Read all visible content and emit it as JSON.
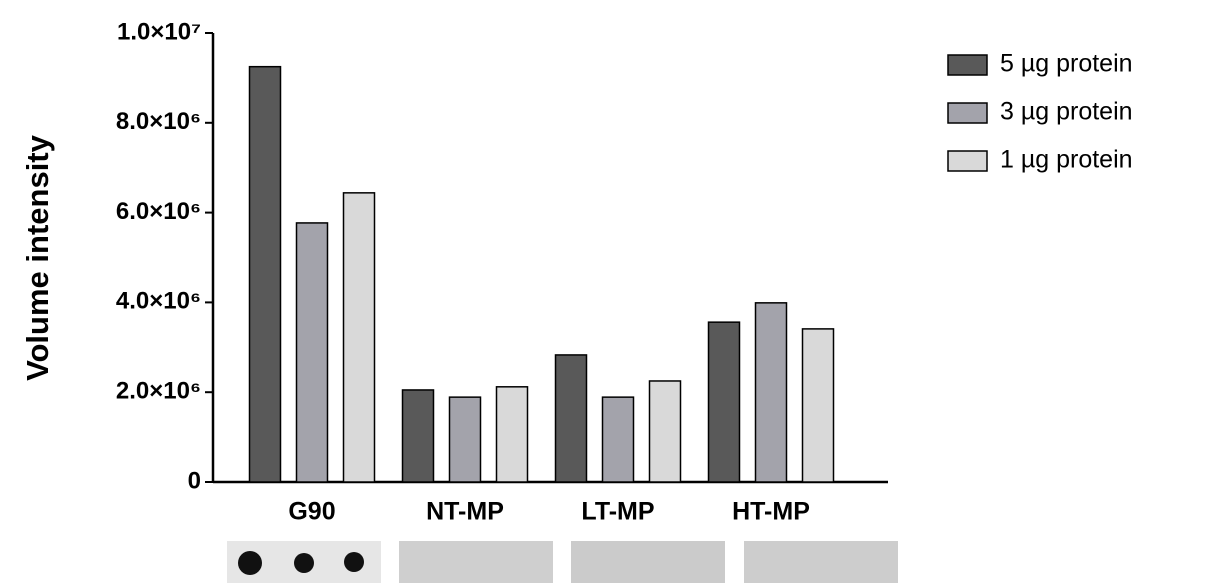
{
  "chart_data": {
    "type": "bar",
    "y_label": "Volume intensity",
    "categories": [
      "G90",
      "NT-MP",
      "LT-MP",
      "HT-MP"
    ],
    "series": [
      {
        "name": "5 µg protein",
        "color": "#595959",
        "values": [
          9250000,
          2050000,
          2830000,
          3560000
        ]
      },
      {
        "name": "3 µg protein",
        "color": "#a3a3ab",
        "values": [
          5770000,
          1890000,
          1890000,
          3990000
        ]
      },
      {
        "name": "1 µg protein",
        "color": "#d9d9d9",
        "values": [
          6440000,
          2120000,
          2250000,
          3410000
        ]
      }
    ],
    "ylim": [
      0,
      10000000
    ],
    "yticks": [
      0,
      {
        "value": 2000000,
        "label": "2.0×10⁶"
      },
      {
        "value": 4000000,
        "label": "4.0×10⁶"
      },
      {
        "value": 6000000,
        "label": "6.0×10⁶"
      },
      {
        "value": 8000000,
        "label": "8.0×10⁶"
      },
      {
        "value": 10000000,
        "label": "1.0×10⁷"
      }
    ],
    "legend": "top-right"
  }
}
